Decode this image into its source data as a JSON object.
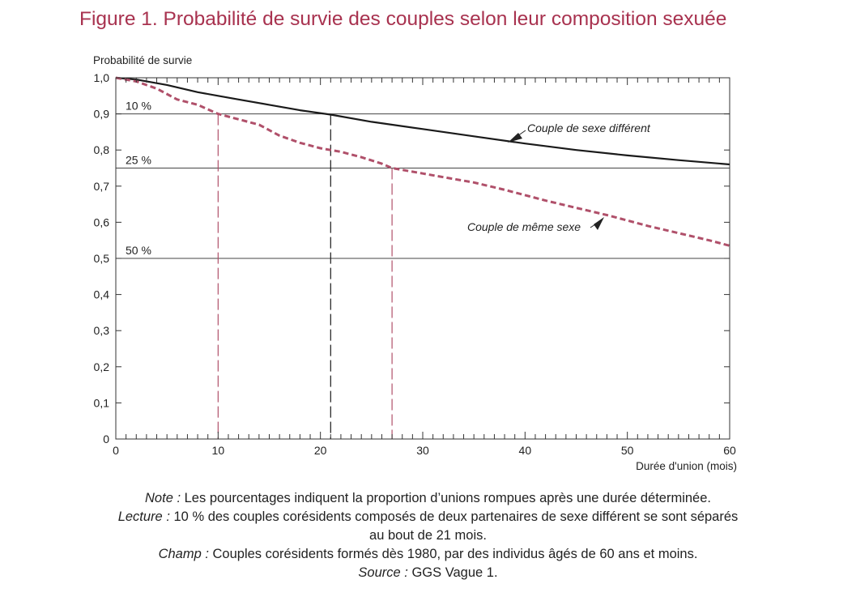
{
  "title": "Figure 1. Probabilité de survie des couples selon leur composition sexuée",
  "notes": {
    "note_key": "Note :",
    "note_text": " Les pourcentages indiquent la proportion d’unions rompues après une durée déterminée.",
    "lecture_key": "Lecture :",
    "lecture_text_1": " 10 % des couples corésidents composés de deux partenaires de sexe différent se sont séparés",
    "lecture_text_2": "au bout de 21 mois.",
    "champ_key": "Champ :",
    "champ_text": " Couples corésidents formés dès 1980, par des individus âgés de 60 ans et moins.",
    "source_key": "Source :",
    "source_text": " GGS Vague 1."
  },
  "colors": {
    "title": "#a8324f",
    "same_sex": "#b0506a",
    "different_sex": "#1a1a1a",
    "axis": "#333333"
  },
  "chart_data": {
    "type": "line",
    "ylabel": "Probabilité de survie",
    "xlabel": "Durée d'union (mois)",
    "xlim": [
      0,
      60
    ],
    "ylim": [
      0,
      1
    ],
    "x_ticks": [
      "0",
      "10",
      "20",
      "30",
      "40",
      "50",
      "60"
    ],
    "y_ticks": [
      "0",
      "0,1",
      "0,2",
      "0,3",
      "0,4",
      "0,5",
      "0,6",
      "0,7",
      "0,8",
      "0,9",
      "1,0"
    ],
    "reference_lines": [
      {
        "label": "10 %",
        "y": 0.9
      },
      {
        "label": "25 %",
        "y": 0.75
      },
      {
        "label": "50 %",
        "y": 0.5
      }
    ],
    "drop_lines": [
      {
        "x": 10,
        "y": 0.9,
        "series": "same_sex"
      },
      {
        "x": 21,
        "y": 0.9,
        "series": "different_sex"
      },
      {
        "x": 27,
        "y": 0.75,
        "series": "same_sex"
      }
    ],
    "series": [
      {
        "key": "different_sex",
        "name": "Couple de sexe différent",
        "style": "solid",
        "x": [
          0,
          2,
          5,
          8,
          10,
          12,
          15,
          18,
          21,
          25,
          30,
          35,
          40,
          45,
          50,
          55,
          60
        ],
        "y": [
          1.0,
          0.995,
          0.98,
          0.96,
          0.95,
          0.94,
          0.925,
          0.91,
          0.898,
          0.878,
          0.858,
          0.838,
          0.818,
          0.8,
          0.785,
          0.772,
          0.76
        ]
      },
      {
        "key": "same_sex",
        "name": "Couple de même sexe",
        "style": "dashed",
        "x": [
          0,
          2,
          4,
          6,
          8,
          10,
          12,
          14,
          16,
          18,
          20,
          22,
          24,
          26,
          27,
          30,
          32,
          35,
          38,
          40,
          42,
          45,
          48,
          50,
          52,
          55,
          58,
          60
        ],
        "y": [
          1.0,
          0.99,
          0.97,
          0.94,
          0.925,
          0.9,
          0.885,
          0.87,
          0.84,
          0.82,
          0.805,
          0.795,
          0.78,
          0.762,
          0.75,
          0.735,
          0.725,
          0.71,
          0.69,
          0.675,
          0.66,
          0.64,
          0.62,
          0.605,
          0.59,
          0.57,
          0.55,
          0.535
        ]
      }
    ]
  }
}
